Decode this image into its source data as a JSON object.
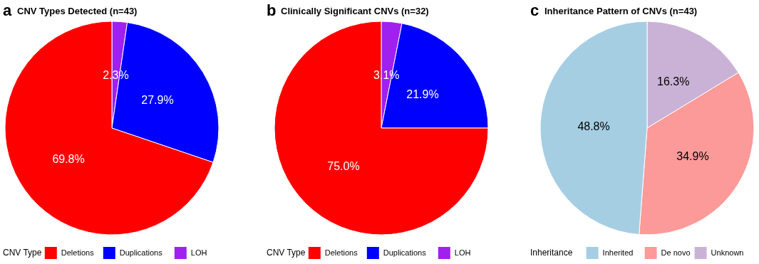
{
  "chart_data": [
    {
      "type": "pie",
      "title": "CNV Types Detected (n=43)",
      "annotations": [
        "a"
      ],
      "legend_title": "CNV Type",
      "legend": "bottom",
      "categories": [
        "Deletions",
        "Duplications",
        "LOH"
      ],
      "values": [
        69.8,
        27.9,
        2.3
      ],
      "colors": [
        "#ff0000",
        "#0000ff",
        "#a020f0"
      ],
      "value_labels": [
        "69.8%",
        "27.9%",
        "2.3%"
      ]
    },
    {
      "type": "pie",
      "title": "Clinically Significant CNVs (n=32)",
      "annotations": [
        "b"
      ],
      "legend_title": "CNV Type",
      "legend": "bottom",
      "categories": [
        "Deletions",
        "Duplications",
        "LOH"
      ],
      "values": [
        75.0,
        21.9,
        3.1
      ],
      "colors": [
        "#ff0000",
        "#0000ff",
        "#a020f0"
      ],
      "value_labels": [
        "75.0%",
        "21.9%",
        "3.1%"
      ]
    },
    {
      "type": "pie",
      "title": "Inheritance Pattern of CNVs (n=43)",
      "annotations": [
        "c"
      ],
      "legend_title": "Inheritance",
      "legend": "bottom",
      "categories": [
        "Inherited",
        "De novo",
        "Unknown"
      ],
      "values": [
        48.8,
        34.9,
        16.3
      ],
      "colors": [
        "#a6cee3",
        "#fb9a99",
        "#cab2d6"
      ],
      "value_labels": [
        "48.8%",
        "34.9%",
        "16.3%"
      ]
    }
  ]
}
